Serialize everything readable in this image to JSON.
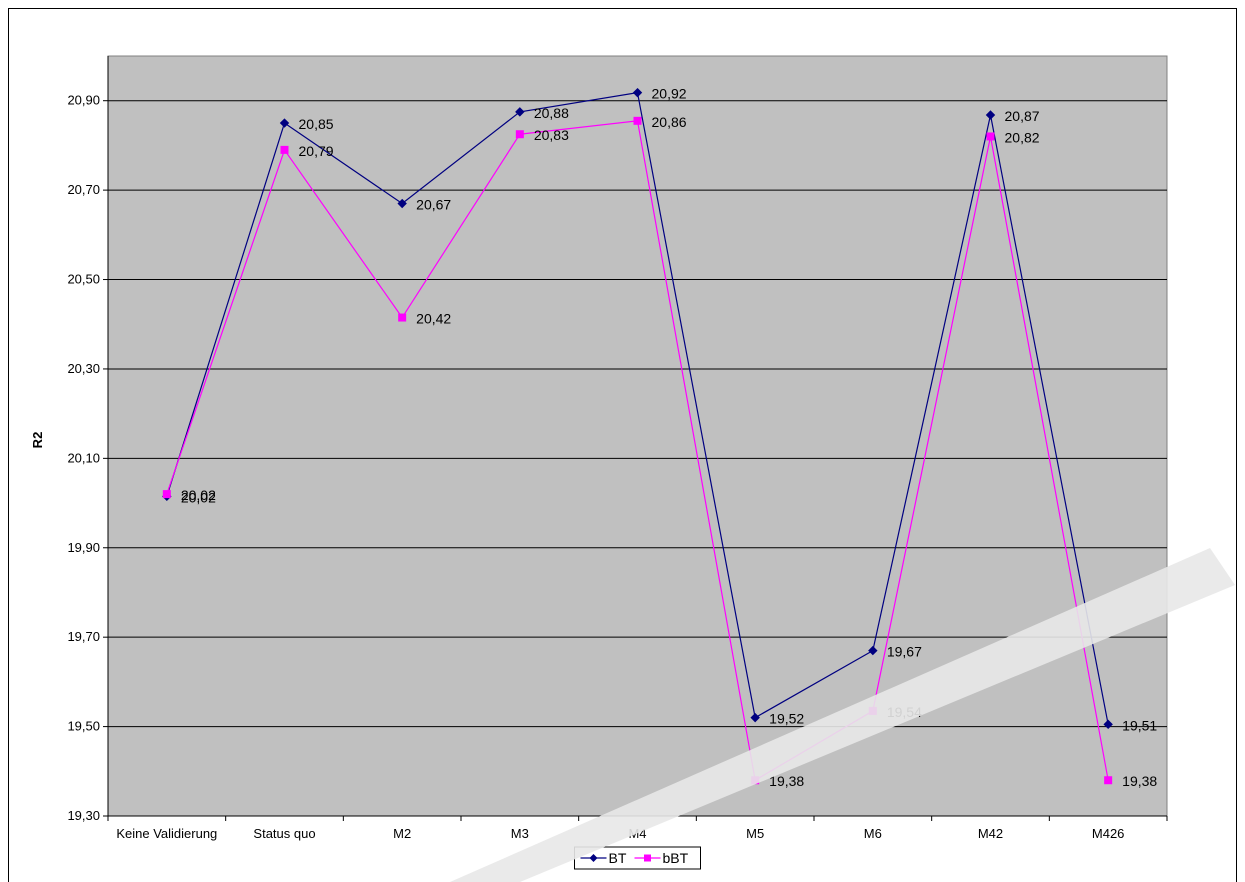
{
  "chart_data": {
    "type": "line",
    "title": "",
    "xlabel": "",
    "ylabel": "R2",
    "ylim": [
      19.3,
      21.0
    ],
    "ytick_step": 0.2,
    "yticks": [
      "19,30",
      "19,50",
      "19,70",
      "19,90",
      "20,10",
      "20,30",
      "20,50",
      "20,70",
      "20,90"
    ],
    "categories": [
      "Keine Validierung",
      "Status quo",
      "M2",
      "M3",
      "M4",
      "M5",
      "M6",
      "M42",
      "M426"
    ],
    "grid": true,
    "legend_position": "bottom",
    "plot_background": "#c0c0c0",
    "series": [
      {
        "name": "BT",
        "color": "#000080",
        "marker": "diamond",
        "values": [
          20.015,
          20.85,
          20.67,
          20.875,
          20.918,
          19.52,
          19.67,
          20.868,
          19.505
        ],
        "labels": [
          "20,02",
          "20,85",
          "20,67",
          "20,88",
          "20,92",
          "19,52",
          "19,67",
          "20,87",
          "19,51"
        ]
      },
      {
        "name": "bBT",
        "color": "#ff00ff",
        "marker": "square",
        "values": [
          20.02,
          20.79,
          20.415,
          20.825,
          20.855,
          19.38,
          19.535,
          20.82,
          19.38
        ],
        "labels": [
          "20,02",
          "20,79",
          "20,42",
          "20,83",
          "20,86",
          "19,38",
          "19,54",
          "20,82",
          "19,38"
        ]
      }
    ]
  }
}
